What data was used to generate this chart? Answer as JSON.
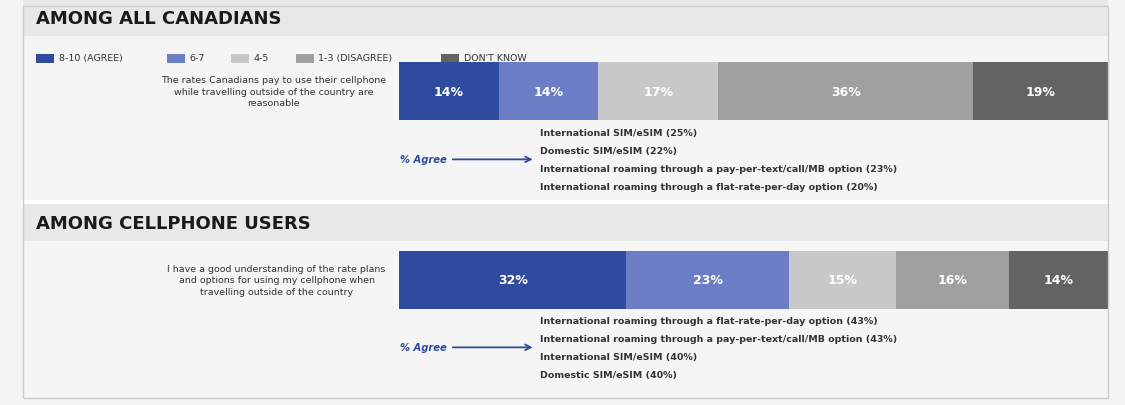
{
  "section1_title": "AMONG ALL CANADIANS",
  "section2_title": "AMONG CELLPHONE USERS",
  "legend_labels": [
    "8-10 (AGREE)",
    "6-7",
    "4-5",
    "1-3 (DISAGREE)",
    "DON'T KNOW"
  ],
  "legend_colors": [
    "#2E4BA0",
    "#6B7EC5",
    "#C8C8C8",
    "#A0A0A0",
    "#636363"
  ],
  "bar1_label": "The rates Canadians pay to use their cellphone\nwhile travelling outside of the country are\nreasonable",
  "bar1_values": [
    14,
    14,
    17,
    36,
    19
  ],
  "bar1_colors": [
    "#2E4BA0",
    "#6B7EC5",
    "#C8C8C8",
    "#A0A0A0",
    "#636363"
  ],
  "bar2_label": "I have a good understanding of the rate plans\nand options for using my cellphone when\ntravelling outside of the country",
  "bar2_values": [
    32,
    23,
    15,
    16,
    14
  ],
  "bar2_colors": [
    "#2E4BA0",
    "#6B7EC5",
    "#C8C8C8",
    "#A0A0A0",
    "#636363"
  ],
  "bar1_annotations": [
    "International SIM/eSIM (25%)",
    "Domestic SIM/eSIM (22%)",
    "International roaming through a pay-per-text/call/MB option (23%)",
    "International roaming through a flat-rate-per-day option (20%)"
  ],
  "bar2_annotations": [
    "International roaming through a flat-rate-per-day option (43%)",
    "International roaming through a pay-per-text/call/MB option (43%)",
    "International SIM/eSIM (40%)",
    "Domestic SIM/eSIM (40%)"
  ],
  "agree_label": "% Agree",
  "bg_color": "#F5F5F5",
  "section_bg": "#E8E8E8",
  "bar_colors": [
    "#2E4BA0",
    "#6B7EC5",
    "#C8C8C8",
    "#A0A0A0",
    "#636363"
  ],
  "text_color": "#333333",
  "agree_color": "#2E4BA0"
}
